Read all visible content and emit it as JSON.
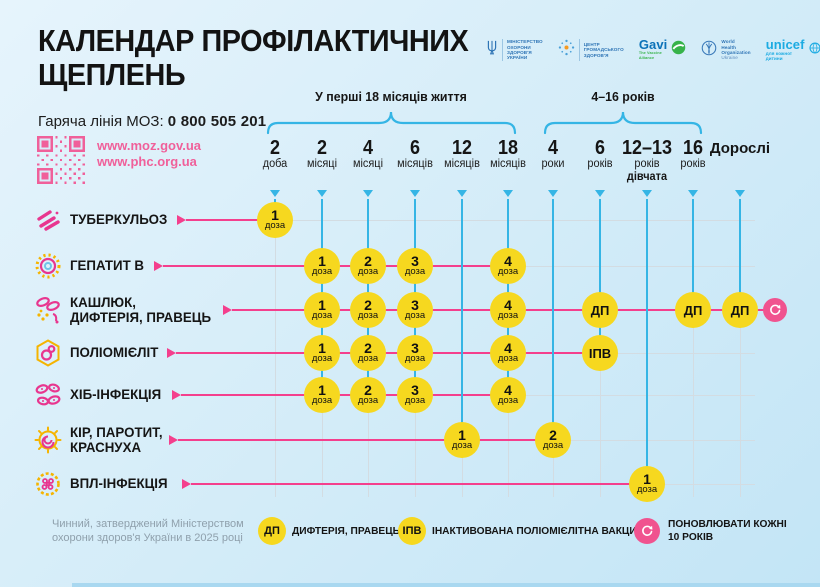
{
  "title": {
    "line1": "КАЛЕНДАР ПРОФІЛАКТИЧНИХ",
    "line2": "ЩЕПЛЕНЬ"
  },
  "hotline": {
    "label": "Гаряча лінія МОЗ:",
    "number": "0 800 505 201"
  },
  "links": [
    "www.moz.gov.ua",
    "www.phc.org.ua"
  ],
  "logos": [
    {
      "id": "moh-ukraine",
      "lines": [
        "МІНІСТЕРСТВО",
        "ОХОРОНИ",
        "ЗДОРОВ'Я",
        "УКРАЇНИ"
      ]
    },
    {
      "id": "public-health-center",
      "lines": [
        "ЦЕНТР",
        "ГРОМАДСЬКОГО",
        "ЗДОРОВ'Я"
      ]
    },
    {
      "id": "gavi",
      "lines": [
        "Gavi",
        "The Vaccine Alliance"
      ]
    },
    {
      "id": "who",
      "lines": [
        "World Health",
        "Organization",
        "Ukraine"
      ]
    },
    {
      "id": "unicef",
      "lines": [
        "unicef",
        "для кожної дитини"
      ]
    }
  ],
  "age_groups": [
    {
      "label": "У перші 18 місяців життя",
      "col_start": 0,
      "col_end": 5
    },
    {
      "label": "4–16 років",
      "col_start": 6,
      "col_end": 9
    }
  ],
  "columns": [
    {
      "value": "2",
      "unit": "доба"
    },
    {
      "value": "2",
      "unit": "місяці"
    },
    {
      "value": "4",
      "unit": "місяці"
    },
    {
      "value": "6",
      "unit": "місяців"
    },
    {
      "value": "12",
      "unit": "місяців"
    },
    {
      "value": "18",
      "unit": "місяців"
    },
    {
      "value": "4",
      "unit": "роки"
    },
    {
      "value": "6",
      "unit": "років"
    },
    {
      "value": "12–13",
      "unit": "років",
      "extra": "дівчата"
    },
    {
      "value": "16",
      "unit": "років"
    },
    {
      "value": "Дорослі",
      "unit": ""
    }
  ],
  "rows": [
    {
      "label_lines": [
        "ТУБЕРКУЛЬОЗ"
      ],
      "icon": "tuberculosis-icon",
      "doses": [
        {
          "col": 0,
          "top": "1",
          "bottom": "доза"
        }
      ]
    },
    {
      "label_lines": [
        "ГЕПАТИТ В"
      ],
      "icon": "hepatitis-b-icon",
      "doses": [
        {
          "col": 1,
          "top": "1",
          "bottom": "доза"
        },
        {
          "col": 2,
          "top": "2",
          "bottom": "доза"
        },
        {
          "col": 3,
          "top": "3",
          "bottom": "доза"
        },
        {
          "col": 5,
          "top": "4",
          "bottom": "доза"
        }
      ]
    },
    {
      "label_lines": [
        "КАШЛЮК,",
        "ДИФТЕРІЯ, ПРАВЕЦЬ"
      ],
      "icon": "pertussis-diphtheria-tetanus-icon",
      "doses": [
        {
          "col": 1,
          "top": "1",
          "bottom": "доза"
        },
        {
          "col": 2,
          "top": "2",
          "bottom": "доза"
        },
        {
          "col": 3,
          "top": "3",
          "bottom": "доза"
        },
        {
          "col": 5,
          "top": "4",
          "bottom": "доза"
        },
        {
          "col": 7,
          "word": "ДП"
        },
        {
          "col": 9,
          "word": "ДП"
        },
        {
          "col": 10,
          "word": "ДП"
        }
      ],
      "repeat_badge": true
    },
    {
      "label_lines": [
        "ПОЛІОМІЄЛІТ"
      ],
      "icon": "polio-icon",
      "doses": [
        {
          "col": 1,
          "top": "1",
          "bottom": "доза"
        },
        {
          "col": 2,
          "top": "2",
          "bottom": "доза"
        },
        {
          "col": 3,
          "top": "3",
          "bottom": "доза"
        },
        {
          "col": 5,
          "top": "4",
          "bottom": "доза"
        },
        {
          "col": 7,
          "word": "ІПВ"
        }
      ]
    },
    {
      "label_lines": [
        "ХІБ-ІНФЕКЦІЯ"
      ],
      "icon": "hib-icon",
      "doses": [
        {
          "col": 1,
          "top": "1",
          "bottom": "доза"
        },
        {
          "col": 2,
          "top": "2",
          "bottom": "доза"
        },
        {
          "col": 3,
          "top": "3",
          "bottom": "доза"
        },
        {
          "col": 5,
          "top": "4",
          "bottom": "доза"
        }
      ]
    },
    {
      "label_lines": [
        "КІР, ПАРОТИТ,",
        "КРАСНУХА"
      ],
      "icon": "measles-mumps-rubella-icon",
      "doses": [
        {
          "col": 4,
          "top": "1",
          "bottom": "доза"
        },
        {
          "col": 6,
          "top": "2",
          "bottom": "доза"
        }
      ]
    },
    {
      "label_lines": [
        "ВПЛ-ІНФЕКЦІЯ"
      ],
      "icon": "hpv-icon",
      "doses": [
        {
          "col": 8,
          "top": "1",
          "bottom": "доза"
        }
      ]
    }
  ],
  "legend": [
    {
      "symbol": "ДП",
      "type": "yellow",
      "text": "ДИФТЕРІЯ, ПРАВЕЦЬ"
    },
    {
      "symbol": "refresh-icon",
      "type": "yellow",
      "symbol_text": "ІПВ",
      "text": "ІНАКТИВОВАНА ПОЛІОМІЄЛІТНА ВАКЦИНА"
    },
    {
      "symbol": "refresh-icon",
      "type": "pink",
      "text": "ПОНОВЛЮВАТИ КОЖНІ\n10 РОКІВ"
    }
  ],
  "footer_note": {
    "line1": "Чинний, затверджений Міністерством",
    "line2": "охорони здоров'я України в 2025 році"
  },
  "colors": {
    "pink_line": "#F43F8D",
    "pink_soft": "#F0609A",
    "pink_badge": "#F0538F",
    "yellow_dose": "#F6D81F",
    "blue_line": "#35B5E5",
    "grid_gray": "#D3DCE2",
    "text_dark": "#151515",
    "note_gray": "#8FA0AC",
    "background_top": "#E6F4FC",
    "background_bottom": "#C3E5F6"
  }
}
